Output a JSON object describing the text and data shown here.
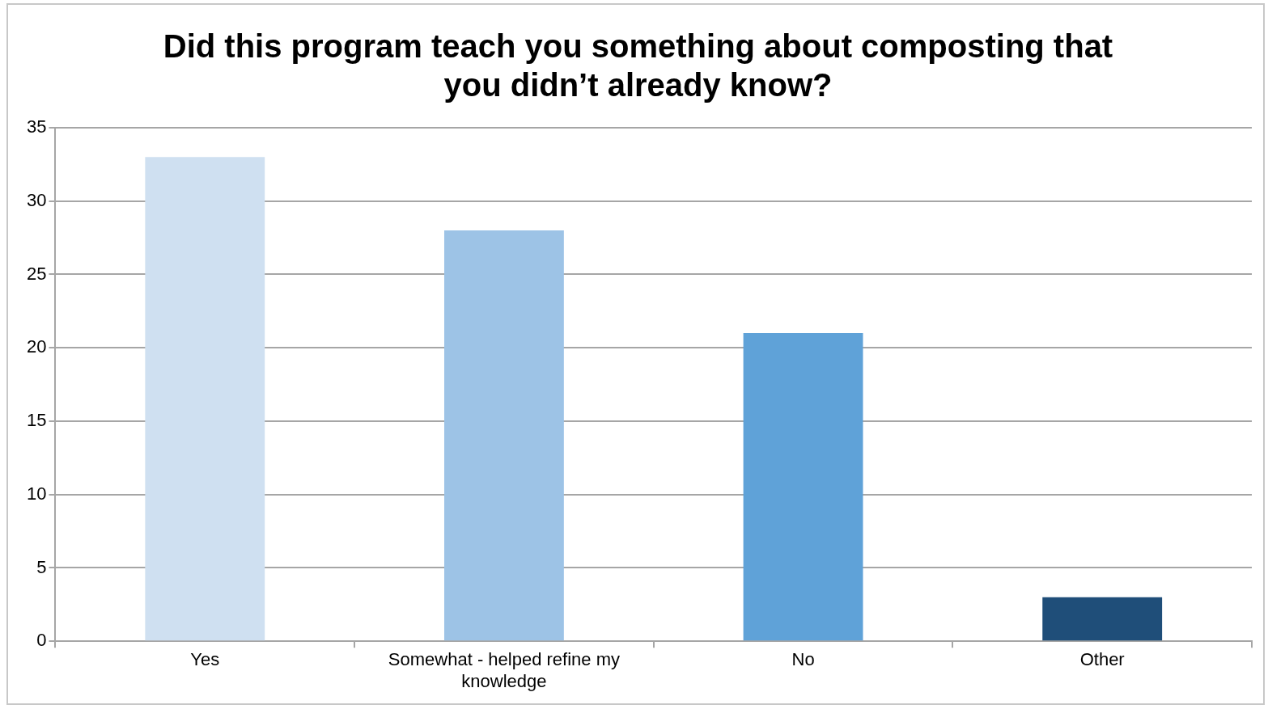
{
  "chart_data": {
    "type": "bar",
    "title": "Did this program teach you something about composting that you didn’t already know?",
    "categories": [
      "Yes",
      "Somewhat - helped refine my knowledge",
      "No",
      "Other"
    ],
    "values": [
      33,
      28,
      21,
      3
    ],
    "colors": [
      "#cfe0f1",
      "#9dc3e6",
      "#5fa2d8",
      "#1f4e79"
    ],
    "ylim": [
      0,
      35
    ],
    "yticks": [
      0,
      5,
      10,
      15,
      20,
      25,
      30,
      35
    ],
    "grid": "y",
    "legend": false
  }
}
